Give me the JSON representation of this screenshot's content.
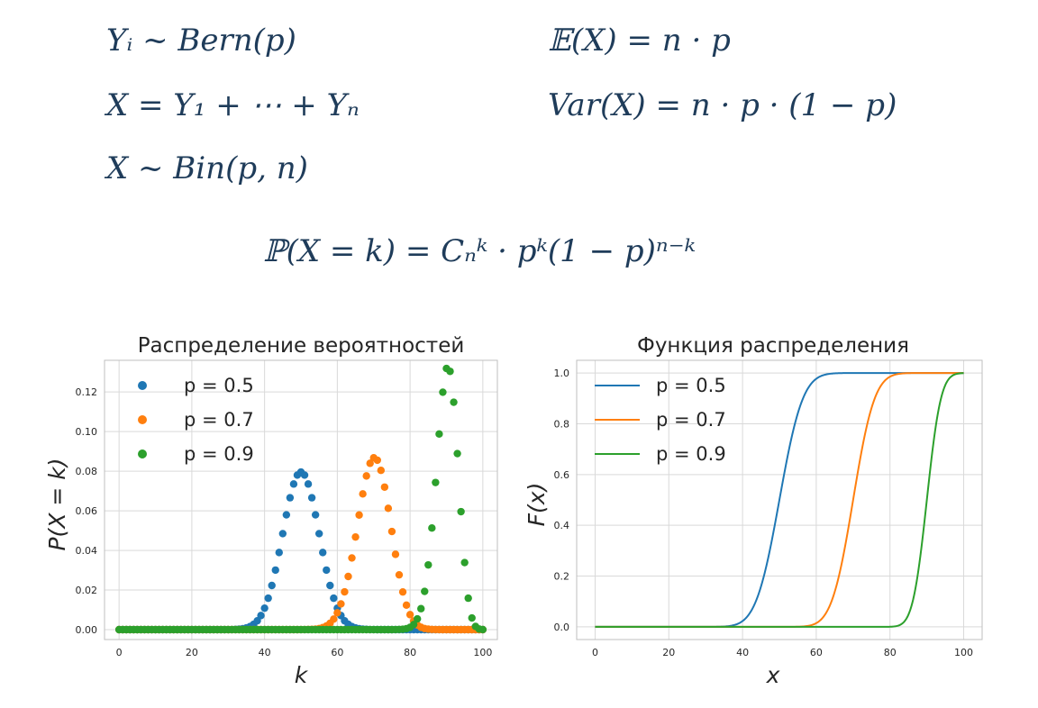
{
  "formulas": {
    "f1": "Yᵢ ~ Bern(p)",
    "f2": "X = Y₁ + ⋯ + Yₙ",
    "f3": "X ~ Bin(p, n)",
    "f4": "𝔼(X) = n · p",
    "f5": "Var(X) = n · p · (1 − p)",
    "f6": "ℙ(X = k) = Cₙᵏ · pᵏ(1 − p)ⁿ⁻ᵏ"
  },
  "colors": {
    "p05": "#1f77b4",
    "p07": "#ff7f0e",
    "p09": "#2ca02c",
    "grid": "#d9d9d9",
    "axis": "#bfbfbf"
  },
  "chart_data": [
    {
      "type": "scatter",
      "title": "Распределение вероятностей",
      "xlabel": "k",
      "ylabel": "P(X = k)",
      "xlim": [
        -4,
        104
      ],
      "ylim": [
        -0.005,
        0.136
      ],
      "xticks": [
        0,
        20,
        40,
        60,
        80,
        100
      ],
      "yticks": [
        0.0,
        0.02,
        0.04,
        0.06,
        0.08,
        0.1,
        0.12
      ],
      "ytick_labels": [
        "0.00",
        "0.02",
        "0.04",
        "0.06",
        "0.08",
        "0.10",
        "0.12"
      ],
      "n": 100,
      "grid": true,
      "legend_position": "top-left",
      "series": [
        {
          "name": "p = 0.5",
          "p": 0.5,
          "color": "#1f77b4"
        },
        {
          "name": "p = 0.7",
          "p": 0.7,
          "color": "#ff7f0e"
        },
        {
          "name": "p = 0.9",
          "p": 0.9,
          "color": "#2ca02c"
        }
      ]
    },
    {
      "type": "line",
      "title": "Функция распределения",
      "xlabel": "x",
      "ylabel": "F(x)",
      "xlim": [
        -5,
        105
      ],
      "ylim": [
        -0.05,
        1.05
      ],
      "xticks": [
        0,
        20,
        40,
        60,
        80,
        100
      ],
      "yticks": [
        0.0,
        0.2,
        0.4,
        0.6,
        0.8,
        1.0
      ],
      "ytick_labels": [
        "0.0",
        "0.2",
        "0.4",
        "0.6",
        "0.8",
        "1.0"
      ],
      "n": 100,
      "grid": true,
      "legend_position": "top-left",
      "series": [
        {
          "name": "p = 0.5",
          "p": 0.5,
          "color": "#1f77b4"
        },
        {
          "name": "p = 0.7",
          "p": 0.7,
          "color": "#ff7f0e"
        },
        {
          "name": "p = 0.9",
          "p": 0.9,
          "color": "#2ca02c"
        }
      ]
    }
  ]
}
